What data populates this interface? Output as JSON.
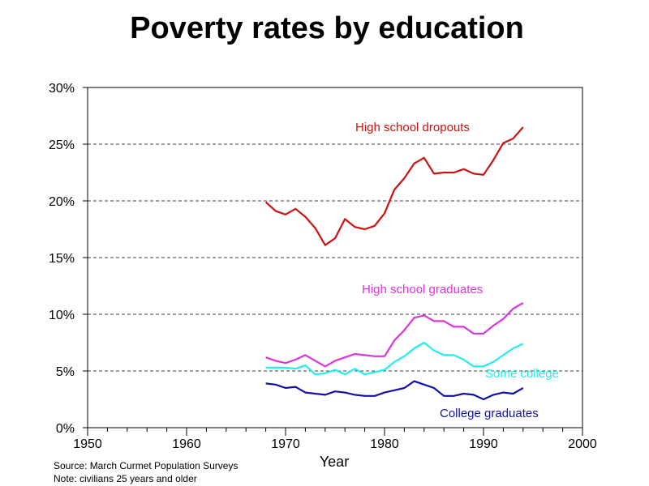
{
  "chart_data": {
    "type": "line",
    "title": "Poverty rates by education",
    "xlabel": "Year",
    "ylabel": "",
    "xlim": [
      1950,
      2000
    ],
    "ylim": [
      0,
      30
    ],
    "x_ticks": [
      1950,
      1960,
      1970,
      1980,
      1990,
      2000
    ],
    "y_ticks": [
      0,
      5,
      10,
      15,
      20,
      25,
      30
    ],
    "y_tick_labels": [
      "0%",
      "5%",
      "10%",
      "15%",
      "20%",
      "25%",
      "30%"
    ],
    "grid": "horizontal dashed",
    "x": [
      1968,
      1969,
      1970,
      1971,
      1972,
      1973,
      1974,
      1975,
      1976,
      1977,
      1978,
      1979,
      1980,
      1981,
      1982,
      1983,
      1984,
      1985,
      1986,
      1987,
      1988,
      1989,
      1990,
      1991,
      1992,
      1993,
      1994
    ],
    "series": [
      {
        "name": "High school dropouts",
        "color": "#cc1111",
        "values": [
          19.9,
          19.1,
          18.8,
          19.3,
          18.6,
          17.6,
          16.1,
          16.7,
          18.4,
          17.7,
          17.5,
          17.8,
          18.9,
          21.0,
          22.0,
          23.3,
          23.8,
          22.4,
          22.5,
          22.5,
          22.8,
          22.4,
          22.3,
          23.6,
          25.1,
          25.5,
          26.5
        ]
      },
      {
        "name": "High school graduates",
        "color": "#dd33dd",
        "values": [
          6.2,
          5.9,
          5.7,
          6.0,
          6.4,
          5.9,
          5.4,
          5.9,
          6.2,
          6.5,
          6.4,
          6.3,
          6.3,
          7.7,
          8.6,
          9.7,
          9.9,
          9.4,
          9.4,
          8.9,
          8.9,
          8.3,
          8.3,
          9.0,
          9.6,
          10.5,
          11.0
        ]
      },
      {
        "name": "Some college",
        "color": "#22eeee",
        "values": [
          5.3,
          5.3,
          5.3,
          5.2,
          5.5,
          4.7,
          4.8,
          5.1,
          4.7,
          5.2,
          4.7,
          4.9,
          5.1,
          5.8,
          6.3,
          7.0,
          7.5,
          6.8,
          6.4,
          6.4,
          6.0,
          5.4,
          5.4,
          5.8,
          6.4,
          7.0,
          7.4
        ]
      },
      {
        "name": "College graduates",
        "color": "#1111aa",
        "values": [
          3.9,
          3.8,
          3.5,
          3.6,
          3.1,
          3.0,
          2.9,
          3.2,
          3.1,
          2.9,
          2.8,
          2.8,
          3.1,
          3.3,
          3.5,
          4.1,
          3.8,
          3.5,
          2.8,
          2.8,
          3.0,
          2.9,
          2.5,
          2.9,
          3.1,
          3.0,
          3.5
        ]
      }
    ],
    "annotations": [
      "High school dropouts",
      "High school graduates",
      "Some college",
      "College graduates"
    ]
  },
  "notes": {
    "source": "Source: March Curmet Population Surveys",
    "note": "Note: civilians 25 years and older"
  }
}
